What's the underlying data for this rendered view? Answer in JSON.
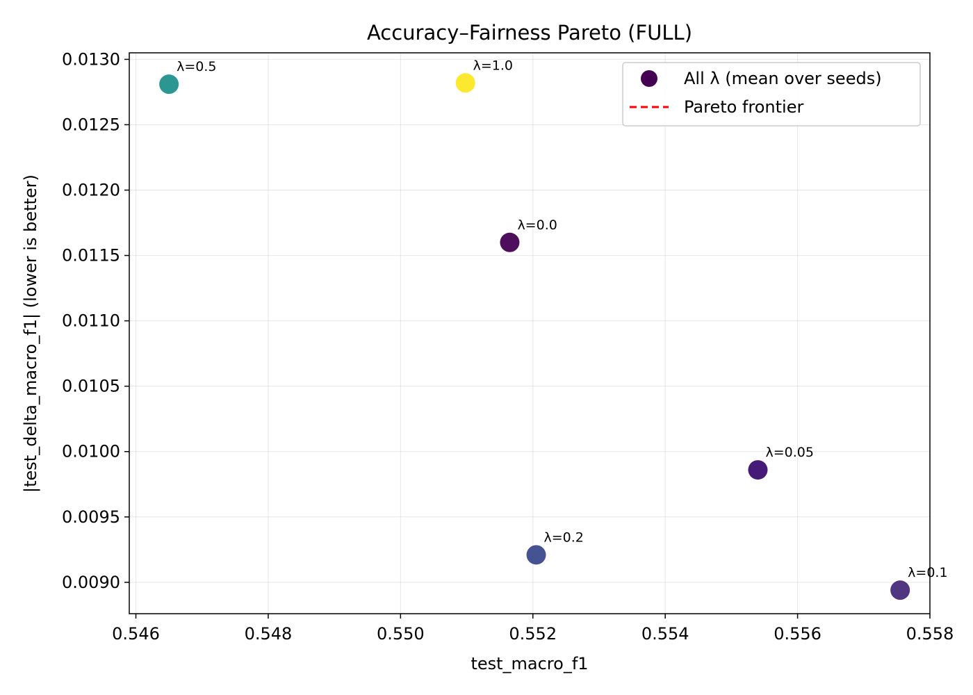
{
  "chart_data": {
    "type": "scatter",
    "title": "Accuracy–Fairness Pareto (FULL)",
    "xlabel": "test_macro_f1",
    "ylabel": "|test_delta_macro_f1| (lower is better)",
    "xlim": [
      0.5459,
      0.558
    ],
    "ylim": [
      0.00876,
      0.01305
    ],
    "grid": true,
    "legend_position": "top-right",
    "x_ticks": [
      {
        "value": 0.546,
        "label": "0.546"
      },
      {
        "value": 0.548,
        "label": "0.548"
      },
      {
        "value": 0.55,
        "label": "0.550"
      },
      {
        "value": 0.552,
        "label": "0.552"
      },
      {
        "value": 0.554,
        "label": "0.554"
      },
      {
        "value": 0.556,
        "label": "0.556"
      },
      {
        "value": 0.558,
        "label": "0.558"
      }
    ],
    "y_ticks": [
      {
        "value": 0.009,
        "label": "0.0090"
      },
      {
        "value": 0.0095,
        "label": "0.0095"
      },
      {
        "value": 0.01,
        "label": "0.0100"
      },
      {
        "value": 0.0105,
        "label": "0.0105"
      },
      {
        "value": 0.011,
        "label": "0.0110"
      },
      {
        "value": 0.0115,
        "label": "0.0115"
      },
      {
        "value": 0.012,
        "label": "0.0120"
      },
      {
        "value": 0.0125,
        "label": "0.0125"
      },
      {
        "value": 0.013,
        "label": "0.0130"
      }
    ],
    "points": [
      {
        "label": "λ=0.0",
        "x": 0.55165,
        "y": 0.0116,
        "color": "#440154"
      },
      {
        "label": "λ=0.05",
        "x": 0.5554,
        "y": 0.00986,
        "color": "#3b0f70"
      },
      {
        "label": "λ=0.1",
        "x": 0.55755,
        "y": 0.00894,
        "color": "#472a7a"
      },
      {
        "label": "λ=0.2",
        "x": 0.55205,
        "y": 0.00921,
        "color": "#3b4a8c"
      },
      {
        "label": "λ=0.5",
        "x": 0.5465,
        "y": 0.01281,
        "color": "#21918c"
      },
      {
        "label": "λ=1.0",
        "x": 0.55098,
        "y": 0.01282,
        "color": "#fde725"
      }
    ],
    "legend": [
      {
        "kind": "marker",
        "label": "All λ (mean over seeds)",
        "color": "#440154"
      },
      {
        "kind": "dashed-line",
        "label": "Pareto frontier",
        "color": "#ff0000"
      }
    ]
  }
}
